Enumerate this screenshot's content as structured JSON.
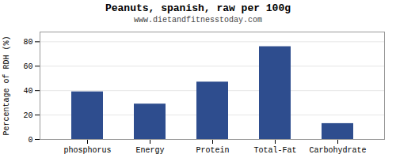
{
  "chart_data": {
    "type": "bar",
    "title": "Peanuts, spanish, raw per 100g",
    "subtitle": "www.dietandfitnesstoday.com",
    "categories": [
      "phosphorus",
      "Energy",
      "Protein",
      "Total-Fat",
      "Carbohydrate"
    ],
    "values": [
      39,
      29,
      47,
      76,
      13
    ],
    "color": "#2e4d8e",
    "ylabel": "Percentage of RDH (%)",
    "ylim": [
      0,
      88
    ],
    "yticks": [
      0,
      20,
      40,
      60,
      80
    ],
    "grid": true
  }
}
